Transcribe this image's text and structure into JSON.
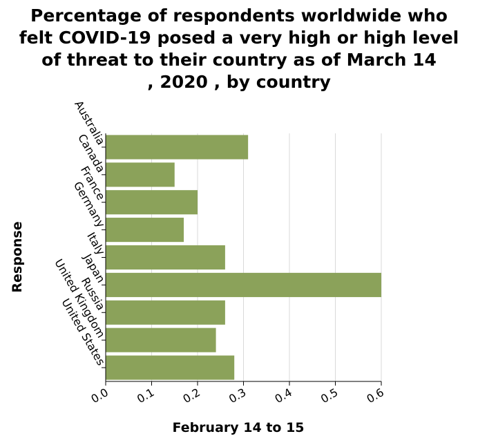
{
  "chart_data": {
    "type": "bar",
    "orientation": "horizontal",
    "title": "Percentage of respondents worldwide who felt COVID-19 posed a very high or high level of threat to their country as of March 14 , 2020 , by country",
    "title_lines": [
      "Percentage of respondents worldwide who",
      "felt COVID-19 posed a very high or high level",
      "of threat to their country as of March 14",
      ", 2020 , by country"
    ],
    "xlabel": "February 14 to 15",
    "ylabel": "Response",
    "categories": [
      "Australia",
      "Canada",
      "France",
      "Germany",
      "Italy",
      "Japan",
      "Russia",
      "United Kingdom",
      "United States"
    ],
    "series": [
      {
        "values": [
          0.31,
          0.15,
          0.2,
          0.17,
          0.26,
          0.6,
          0.26,
          0.24,
          0.28
        ],
        "color": "#8ba25a"
      }
    ],
    "xlim": [
      0,
      0.6
    ],
    "xticks": [
      "0.0",
      "0.1",
      "0.2",
      "0.3",
      "0.4",
      "0.5",
      "0.6"
    ],
    "grid": "vertical",
    "legend": "none"
  }
}
